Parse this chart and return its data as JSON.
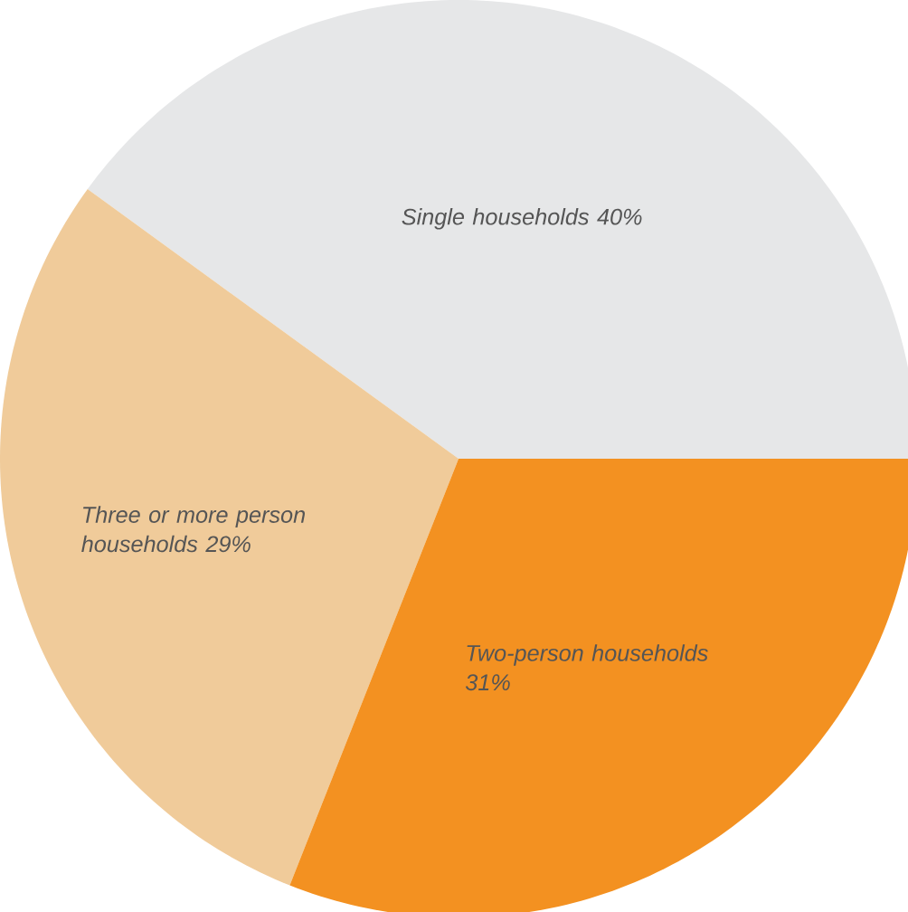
{
  "chart_data": {
    "type": "pie",
    "categories": [
      "Single households",
      "Three or more person households",
      "Two-person households"
    ],
    "values": [
      40,
      29,
      31
    ],
    "colors": [
      "#e6e7e8",
      "#f0cb9a",
      "#f39121"
    ],
    "value_labels": [
      "40%",
      "29%",
      "31%"
    ]
  }
}
